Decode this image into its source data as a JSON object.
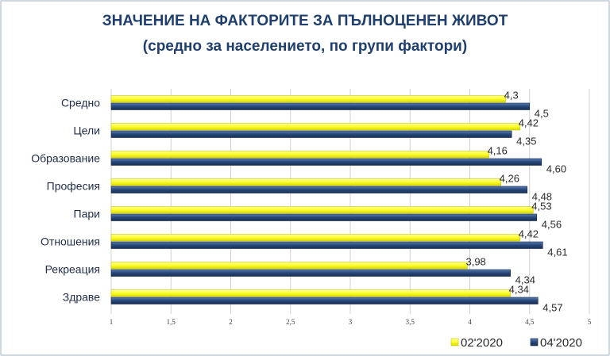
{
  "chart_data": {
    "type": "bar",
    "orientation": "horizontal",
    "title": "ЗНАЧЕНИЕ НА ФАКТОРИТЕ ЗА ПЪЛНОЦЕНЕН ЖИВОТ",
    "subtitle": "(средно за населението, по групи фактори)",
    "categories": [
      "Средно",
      "Цели",
      "Образование",
      "Професия",
      "Пари",
      "Отношения",
      "Рекреация",
      "Здраве"
    ],
    "series": [
      {
        "name": "02'2020",
        "color": "#ffff33",
        "values": [
          4.3,
          4.42,
          4.16,
          4.26,
          4.53,
          4.42,
          3.98,
          4.34
        ],
        "labels": [
          "4,3",
          "4,42",
          "4,16",
          "4,26",
          "4,53",
          "4,42",
          "3,98",
          "4,34"
        ]
      },
      {
        "name": "04'2020",
        "color": "#2a4b7c",
        "values": [
          4.5,
          4.35,
          4.6,
          4.48,
          4.56,
          4.61,
          4.34,
          4.57
        ],
        "labels": [
          "4,5",
          "4,35",
          "4,60",
          "4,48",
          "4,56",
          "4,61",
          "4,34",
          "4,57"
        ]
      }
    ],
    "xlim": [
      1,
      5
    ],
    "xticks": [
      1,
      1.5,
      2,
      2.5,
      3,
      3.5,
      4,
      4.5,
      5
    ],
    "xtick_labels": [
      "1",
      "1,5",
      "2",
      "2,5",
      "3",
      "3,5",
      "4",
      "4,5",
      "5"
    ],
    "grid": true,
    "legend_position": "bottom-right"
  }
}
